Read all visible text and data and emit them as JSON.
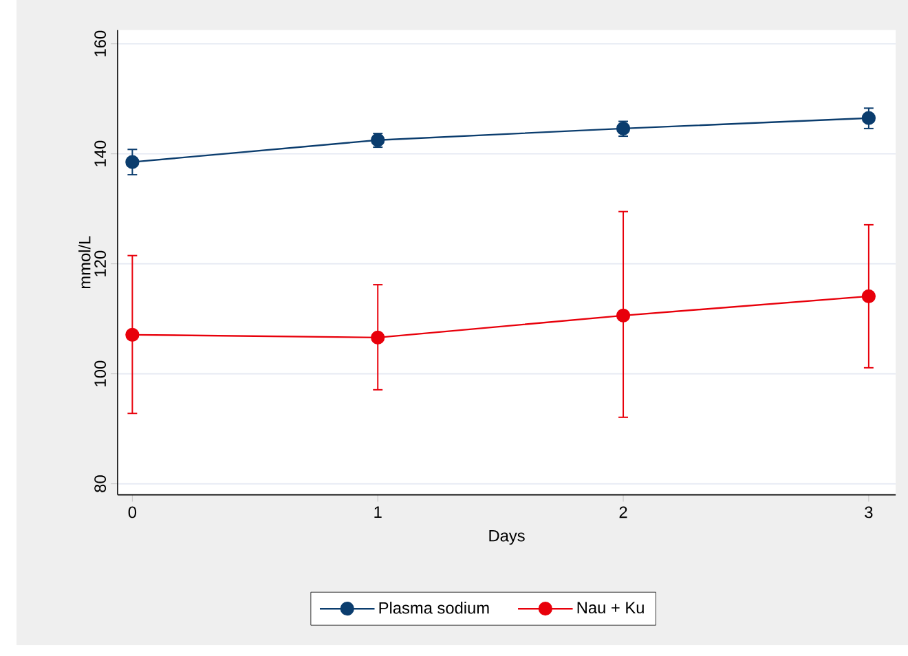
{
  "chart_data": {
    "type": "line",
    "xlabel": "Days",
    "ylabel": "mmol/L",
    "x": [
      0,
      1,
      2,
      3
    ],
    "series": [
      {
        "name": "Plasma sodium",
        "color": "#0b3d6e",
        "values": [
          138.5,
          142.5,
          144.6,
          146.5
        ],
        "errors": [
          [
            136.2,
            140.8
          ],
          [
            141.2,
            143.7
          ],
          [
            143.2,
            145.9
          ],
          [
            144.6,
            148.3
          ]
        ]
      },
      {
        "name": "Nau + Ku",
        "color": "#e8000b",
        "values": [
          107.1,
          106.6,
          110.6,
          114.1
        ],
        "errors": [
          [
            92.8,
            121.5
          ],
          [
            97.1,
            116.2
          ],
          [
            92.1,
            129.5
          ],
          [
            101.1,
            127.1
          ]
        ]
      }
    ],
    "xlim": [
      -0.06,
      3.11
    ],
    "ylim": [
      78,
      162.5
    ],
    "xticks": [
      0,
      1,
      2,
      3
    ],
    "yticks": [
      80,
      100,
      120,
      140,
      160
    ],
    "grid": "y",
    "legend": "bottom",
    "marker": "circle",
    "line_style": "solid"
  }
}
